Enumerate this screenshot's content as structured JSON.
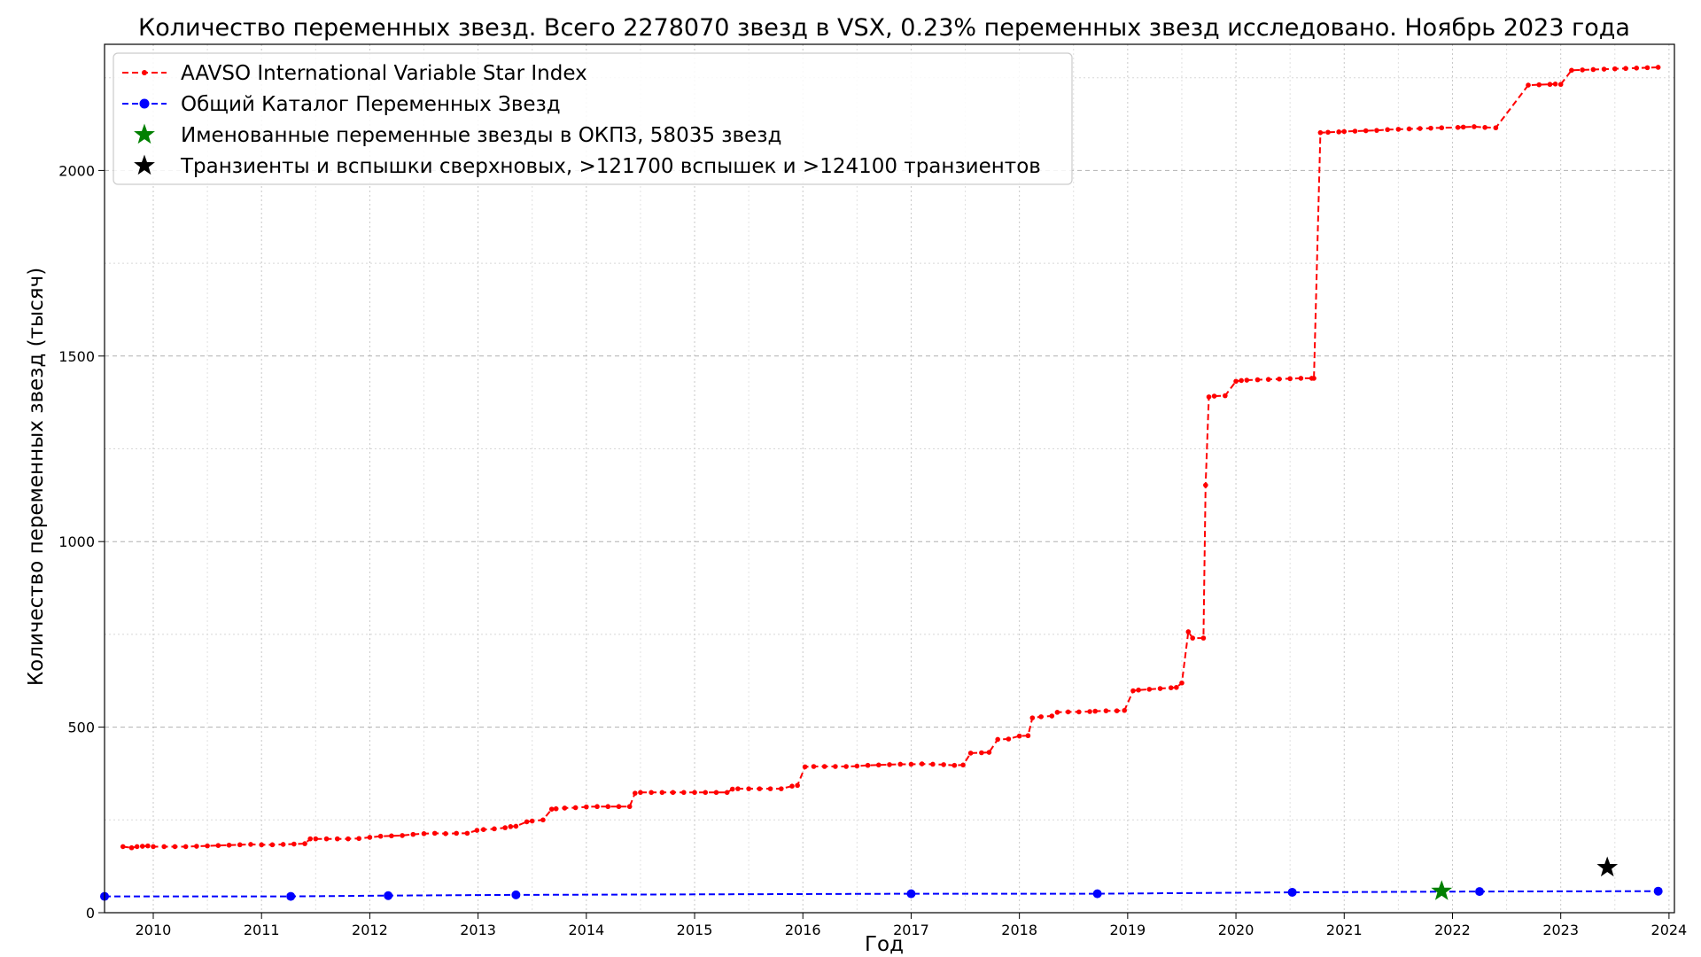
{
  "chart_data": {
    "type": "line",
    "title": "Количество переменных звезд. Всего 2278070 звезд в VSX, 0.23% переменных звезд исследовано. Ноябрь 2023 года",
    "xlabel": "Год",
    "ylabel": "Количество переменных звезд (тысяч)",
    "xlim": [
      2009.55,
      2024.05
    ],
    "ylim": [
      0,
      2340
    ],
    "x_ticks": [
      "2010",
      "2011",
      "2012",
      "2013",
      "2014",
      "2015",
      "2016",
      "2017",
      "2018",
      "2019",
      "2020",
      "2021",
      "2022",
      "2023",
      "2024"
    ],
    "y_ticks": [
      "0",
      "500",
      "1000",
      "1500",
      "2000"
    ],
    "grid": true,
    "legend_position": "top-left",
    "legend": [
      "AAVSO International Variable Star Index",
      "Общий Каталог Переменных Звезд",
      "Именованные переменные звезды в ОКПЗ, 58035 звезд",
      "Транзиенты и вспышки сверхновых, >121700 вспышек и >124100 транзиентов"
    ],
    "series": [
      {
        "name": "AAVSO International Variable Star Index",
        "color": "#ff0000",
        "style": "dashed-dots",
        "x": [
          2009.72,
          2009.8,
          2009.85,
          2009.9,
          2009.95,
          2010.0,
          2010.1,
          2010.2,
          2010.3,
          2010.4,
          2010.5,
          2010.6,
          2010.7,
          2010.8,
          2010.9,
          2011.0,
          2011.1,
          2011.2,
          2011.3,
          2011.4,
          2011.45,
          2011.5,
          2011.6,
          2011.7,
          2011.8,
          2011.9,
          2012.0,
          2012.1,
          2012.2,
          2012.3,
          2012.4,
          2012.5,
          2012.6,
          2012.7,
          2012.8,
          2012.9,
          2012.99,
          2013.05,
          2013.15,
          2013.25,
          2013.3,
          2013.35,
          2013.45,
          2013.5,
          2013.6,
          2013.68,
          2013.72,
          2013.8,
          2013.9,
          2014.0,
          2014.1,
          2014.2,
          2014.3,
          2014.4,
          2014.45,
          2014.5,
          2014.6,
          2014.7,
          2014.8,
          2014.9,
          2015.0,
          2015.1,
          2015.2,
          2015.3,
          2015.35,
          2015.4,
          2015.5,
          2015.6,
          2015.7,
          2015.8,
          2015.9,
          2015.95,
          2016.02,
          2016.1,
          2016.2,
          2016.3,
          2016.4,
          2016.5,
          2016.6,
          2016.7,
          2016.8,
          2016.9,
          2017.0,
          2017.1,
          2017.2,
          2017.3,
          2017.4,
          2017.48,
          2017.55,
          2017.65,
          2017.72,
          2017.8,
          2017.9,
          2018.0,
          2018.08,
          2018.12,
          2018.2,
          2018.3,
          2018.35,
          2018.45,
          2018.55,
          2018.65,
          2018.7,
          2018.8,
          2018.9,
          2018.97,
          2019.05,
          2019.1,
          2019.2,
          2019.3,
          2019.4,
          2019.45,
          2019.5,
          2019.56,
          2019.6,
          2019.7,
          2019.72,
          2019.75,
          2019.8,
          2019.9,
          2020.0,
          2020.05,
          2020.1,
          2020.2,
          2020.3,
          2020.4,
          2020.5,
          2020.6,
          2020.7,
          2020.72,
          2020.78,
          2020.85,
          2020.95,
          2021.0,
          2021.1,
          2021.2,
          2021.3,
          2021.4,
          2021.5,
          2021.6,
          2021.7,
          2021.8,
          2021.9,
          2022.05,
          2022.1,
          2022.2,
          2022.3,
          2022.4,
          2022.7,
          2022.8,
          2022.9,
          2022.95,
          2023.0,
          2023.1,
          2023.2,
          2023.3,
          2023.4,
          2023.5,
          2023.6,
          2023.7,
          2023.8,
          2023.9
        ],
        "y": [
          178,
          175,
          178,
          179,
          180,
          178,
          178,
          178,
          178,
          179,
          180,
          181,
          182,
          183,
          184,
          183,
          183,
          184,
          185,
          186,
          199,
          199,
          199,
          199,
          199,
          200,
          203,
          206,
          207,
          208,
          211,
          213,
          214,
          213,
          214,
          214,
          222,
          224,
          226,
          229,
          232,
          233,
          245,
          247,
          250,
          279,
          280,
          282,
          283,
          285,
          286,
          286,
          286,
          286,
          322,
          324,
          324,
          324,
          324,
          324,
          324,
          324,
          324,
          324,
          333,
          334,
          334,
          334,
          334,
          334,
          341,
          343,
          393,
          394,
          394,
          394,
          394,
          395,
          397,
          398,
          399,
          400,
          400,
          401,
          400,
          399,
          397,
          398,
          430,
          431,
          432,
          467,
          468,
          476,
          477,
          525,
          528,
          530,
          540,
          541,
          541,
          542,
          543,
          544,
          544,
          545,
          598,
          600,
          602,
          604,
          606,
          607,
          619,
          757,
          740,
          740,
          1152,
          1390,
          1392,
          1393,
          1432,
          1434,
          1435,
          1436,
          1437,
          1438,
          1439,
          1440,
          1440,
          1440,
          2102,
          2103,
          2104,
          2105,
          2106,
          2107,
          2108,
          2110,
          2111,
          2112,
          2113,
          2114,
          2115,
          2116,
          2117,
          2118,
          2116,
          2115,
          2230,
          2231,
          2232,
          2233,
          2232,
          2270,
          2271,
          2272,
          2273,
          2274,
          2275,
          2276,
          2277,
          2278
        ]
      },
      {
        "name": "Общий Каталог Переменных Звезд",
        "color": "#0000ff",
        "style": "dashed-dots",
        "x": [
          2009.55,
          2011.27,
          2012.17,
          2013.35,
          2017.0,
          2018.72,
          2020.52,
          2022.25,
          2023.9
        ],
        "y": [
          44,
          44,
          46,
          48,
          51,
          51,
          55,
          57,
          58
        ]
      },
      {
        "name": "Именованные переменные звезды в ОКПЗ, 58035 звезд",
        "color": "#008000",
        "style": "star",
        "x": [
          2021.9
        ],
        "y": [
          58.035
        ]
      },
      {
        "name": "Транзиенты и вспышки сверхновых, >121700 вспышек и >124100 транзиентов",
        "color": "#000000",
        "style": "star",
        "x": [
          2023.43
        ],
        "y": [
          121.7
        ]
      }
    ]
  }
}
